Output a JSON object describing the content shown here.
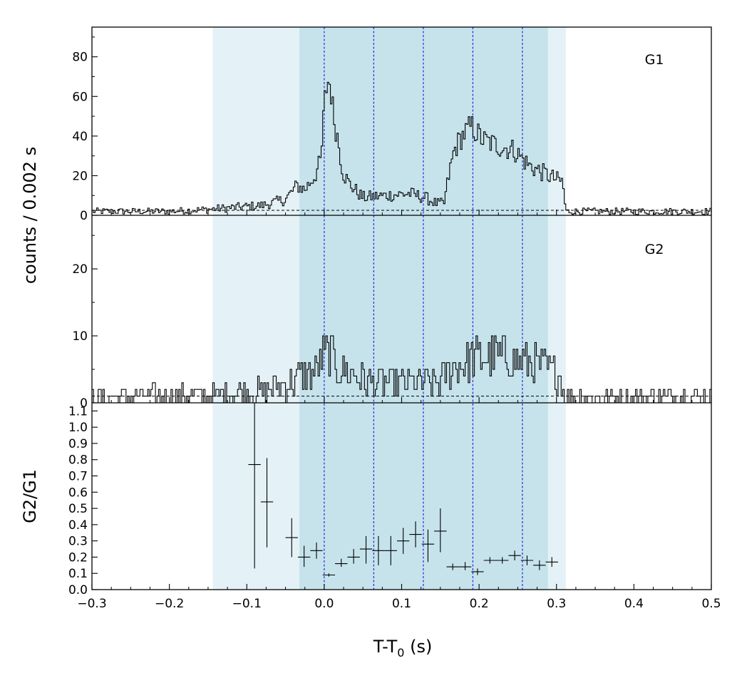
{
  "chart_data": {
    "type": "multi-panel step histogram with error-bar ratio panel",
    "x_axis": {
      "label_main": "T-T",
      "label_sub": "0",
      "label_unit": " (s)",
      "range": [
        -0.3,
        0.5
      ],
      "ticks": [
        "−0.3",
        "−0.2",
        "−0.1",
        "0.0",
        "0.1",
        "0.2",
        "0.3",
        "0.4",
        "0.5"
      ],
      "tick_values": [
        -0.3,
        -0.2,
        -0.1,
        0.0,
        0.1,
        0.2,
        0.3,
        0.4,
        0.5
      ]
    },
    "shared_ylabel": "counts /  0.002 s",
    "shaded_regions": [
      {
        "x": [
          -0.144,
          0.312
        ],
        "color": "#e4f2f7"
      },
      {
        "x": [
          -0.032,
          0.289
        ],
        "color": "#c6e3ec"
      }
    ],
    "vertical_lines": {
      "x": [
        0.0,
        0.064,
        0.128,
        0.192,
        0.256
      ],
      "color": "#1f2be0",
      "style": "dashed"
    },
    "panels": [
      {
        "name": "G1",
        "label": "G1",
        "ylim": [
          0,
          95
        ],
        "ticks": [
          "0",
          "20",
          "40",
          "60",
          "80"
        ],
        "tick_values": [
          0,
          20,
          40,
          60,
          80
        ],
        "background_level": 2.5,
        "anchors": [
          [
            -0.3,
            2
          ],
          [
            -0.2,
            2
          ],
          [
            -0.15,
            3
          ],
          [
            -0.08,
            5
          ],
          [
            -0.05,
            8
          ],
          [
            -0.035,
            15
          ],
          [
            -0.025,
            13
          ],
          [
            -0.012,
            20
          ],
          [
            -0.004,
            28
          ],
          [
            0.0,
            55
          ],
          [
            0.004,
            68
          ],
          [
            0.008,
            66
          ],
          [
            0.012,
            50
          ],
          [
            0.018,
            38
          ],
          [
            0.024,
            22
          ],
          [
            0.032,
            16
          ],
          [
            0.05,
            9
          ],
          [
            0.08,
            10
          ],
          [
            0.11,
            11
          ],
          [
            0.13,
            9
          ],
          [
            0.145,
            6
          ],
          [
            0.155,
            6
          ],
          [
            0.16,
            18
          ],
          [
            0.168,
            33
          ],
          [
            0.178,
            40
          ],
          [
            0.19,
            45
          ],
          [
            0.205,
            38
          ],
          [
            0.225,
            35
          ],
          [
            0.245,
            33
          ],
          [
            0.265,
            25
          ],
          [
            0.285,
            21
          ],
          [
            0.3,
            18
          ],
          [
            0.308,
            17
          ],
          [
            0.312,
            2
          ],
          [
            0.4,
            2
          ],
          [
            0.5,
            2
          ]
        ]
      },
      {
        "name": "G2",
        "label": "G2",
        "ylim": [
          0,
          28
        ],
        "ticks": [
          "0",
          "10",
          "20"
        ],
        "tick_values": [
          0,
          10,
          20
        ],
        "background_level": 1,
        "anchors": [
          [
            -0.3,
            0.8
          ],
          [
            -0.15,
            1.0
          ],
          [
            -0.08,
            1.8
          ],
          [
            -0.04,
            3.0
          ],
          [
            -0.03,
            4.0
          ],
          [
            -0.01,
            5.0
          ],
          [
            0.0,
            7.0
          ],
          [
            0.008,
            7.5
          ],
          [
            0.02,
            5.0
          ],
          [
            0.06,
            3.0
          ],
          [
            0.11,
            3.0
          ],
          [
            0.15,
            3.0
          ],
          [
            0.165,
            5.0
          ],
          [
            0.19,
            6.5
          ],
          [
            0.23,
            7.0
          ],
          [
            0.26,
            6.0
          ],
          [
            0.29,
            5.0
          ],
          [
            0.305,
            4.0
          ],
          [
            0.312,
            0.8
          ],
          [
            0.5,
            0.8
          ]
        ]
      },
      {
        "name": "G2/G1",
        "ylabel": "G2/G1",
        "ylim": [
          0,
          1.15
        ],
        "ticks": [
          "0.0",
          "0.1",
          "0.2",
          "0.3",
          "0.4",
          "0.5",
          "0.6",
          "0.7",
          "0.8",
          "0.9",
          "1.0",
          "1.1"
        ],
        "tick_values": [
          0.0,
          0.1,
          0.2,
          0.3,
          0.4,
          0.5,
          0.6,
          0.7,
          0.8,
          0.9,
          1.0,
          1.1
        ],
        "points": [
          {
            "x": -0.09,
            "xerr": 0.008,
            "y": 0.77,
            "ylo": 0.13,
            "yhi": 1.15
          },
          {
            "x": -0.074,
            "xerr": 0.008,
            "y": 0.54,
            "ylo": 0.26,
            "yhi": 0.81
          },
          {
            "x": -0.042,
            "xerr": 0.008,
            "y": 0.32,
            "ylo": 0.2,
            "yhi": 0.44
          },
          {
            "x": -0.026,
            "xerr": 0.008,
            "y": 0.2,
            "ylo": 0.14,
            "yhi": 0.27
          },
          {
            "x": -0.01,
            "xerr": 0.008,
            "y": 0.24,
            "ylo": 0.19,
            "yhi": 0.29
          },
          {
            "x": 0.006,
            "xerr": 0.008,
            "y": 0.09,
            "ylo": 0.08,
            "yhi": 0.1
          },
          {
            "x": 0.022,
            "xerr": 0.008,
            "y": 0.16,
            "ylo": 0.14,
            "yhi": 0.19
          },
          {
            "x": 0.038,
            "xerr": 0.008,
            "y": 0.2,
            "ylo": 0.16,
            "yhi": 0.25
          },
          {
            "x": 0.054,
            "xerr": 0.008,
            "y": 0.25,
            "ylo": 0.16,
            "yhi": 0.33
          },
          {
            "x": 0.07,
            "xerr": 0.008,
            "y": 0.24,
            "ylo": 0.15,
            "yhi": 0.33
          },
          {
            "x": 0.086,
            "xerr": 0.008,
            "y": 0.24,
            "ylo": 0.15,
            "yhi": 0.33
          },
          {
            "x": 0.102,
            "xerr": 0.008,
            "y": 0.3,
            "ylo": 0.22,
            "yhi": 0.38
          },
          {
            "x": 0.118,
            "xerr": 0.008,
            "y": 0.34,
            "ylo": 0.26,
            "yhi": 0.42
          },
          {
            "x": 0.134,
            "xerr": 0.008,
            "y": 0.28,
            "ylo": 0.17,
            "yhi": 0.37
          },
          {
            "x": 0.15,
            "xerr": 0.008,
            "y": 0.36,
            "ylo": 0.23,
            "yhi": 0.5
          },
          {
            "x": 0.166,
            "xerr": 0.008,
            "y": 0.14,
            "ylo": 0.12,
            "yhi": 0.16
          },
          {
            "x": 0.182,
            "xerr": 0.008,
            "y": 0.14,
            "ylo": 0.12,
            "yhi": 0.17
          },
          {
            "x": 0.198,
            "xerr": 0.008,
            "y": 0.11,
            "ylo": 0.09,
            "yhi": 0.13
          },
          {
            "x": 0.214,
            "xerr": 0.008,
            "y": 0.18,
            "ylo": 0.16,
            "yhi": 0.2
          },
          {
            "x": 0.23,
            "xerr": 0.008,
            "y": 0.18,
            "ylo": 0.16,
            "yhi": 0.2
          },
          {
            "x": 0.246,
            "xerr": 0.008,
            "y": 0.21,
            "ylo": 0.18,
            "yhi": 0.24
          },
          {
            "x": 0.262,
            "xerr": 0.008,
            "y": 0.18,
            "ylo": 0.15,
            "yhi": 0.21
          },
          {
            "x": 0.278,
            "xerr": 0.008,
            "y": 0.15,
            "ylo": 0.12,
            "yhi": 0.18
          },
          {
            "x": 0.294,
            "xerr": 0.008,
            "y": 0.17,
            "ylo": 0.14,
            "yhi": 0.2
          }
        ]
      }
    ]
  }
}
